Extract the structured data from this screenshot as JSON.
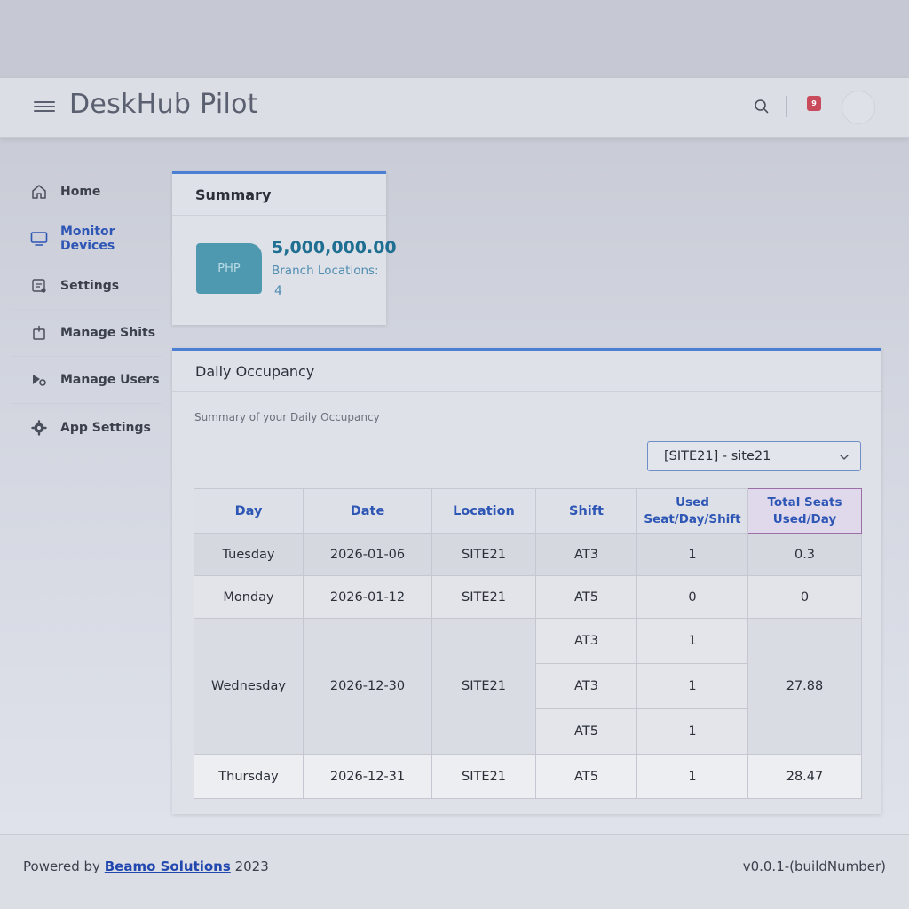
{
  "header": {
    "title": "DeskHub Pilot",
    "notification_count": "9"
  },
  "sidebar": {
    "items": [
      {
        "label": "Home",
        "icon": "home-icon"
      },
      {
        "label": "Monitor Devices",
        "icon": "monitor-icon",
        "active": true
      },
      {
        "label": "Settings",
        "icon": "settings-icon"
      },
      {
        "label": "Manage Shits",
        "icon": "shift-icon"
      },
      {
        "label": "Manage Users",
        "icon": "users-icon"
      },
      {
        "label": "App Settings",
        "icon": "gear-icon"
      }
    ]
  },
  "summary": {
    "title": "Summary",
    "currency": "PHP",
    "amount": "5,000,000.00",
    "branch_label": "Branch Locations:",
    "branch_count": "4"
  },
  "occupancy": {
    "title": "Daily Occupancy",
    "subtitle": "Summary of your Daily Occupancy",
    "selected_site": "[SITE21] - site21",
    "columns": {
      "day": "Day",
      "date": "Date",
      "location": "Location",
      "shift": "Shift",
      "used_line1": "Used",
      "used_line2": "Seat/Day/Shift",
      "total_line1": "Total Seats",
      "total_line2": "Used/Day"
    },
    "rows": [
      {
        "day": "Tuesday",
        "date": "2026-01-06",
        "location": "SITE21",
        "shift": "AT3",
        "used": "1",
        "total": "0.3"
      },
      {
        "day": "Monday",
        "date": "2026-01-12",
        "location": "SITE21",
        "shift": "AT5",
        "used": "0",
        "total": "0"
      },
      {
        "day": "Wednesday",
        "date": "2026-12-30",
        "location": "SITE21",
        "total": "27.88",
        "shifts": [
          {
            "shift": "AT3",
            "used": "1"
          },
          {
            "shift": "AT3",
            "used": "1"
          },
          {
            "shift": "AT5",
            "used": "1"
          }
        ]
      },
      {
        "day": "Thursday",
        "date": "2026-12-31",
        "location": "SITE21",
        "shift": "AT5",
        "used": "1",
        "total": "28.47"
      }
    ]
  },
  "footer": {
    "powered_by": "Powered by",
    "company": "Beamo Solutions",
    "year": "2023",
    "version": "v0.0.1-(buildNumber)"
  },
  "colors": {
    "accent": "#4a7fd4",
    "active_nav": "#2e56b5",
    "badge": "#c94a5a",
    "php_box": "#4e99b0"
  }
}
